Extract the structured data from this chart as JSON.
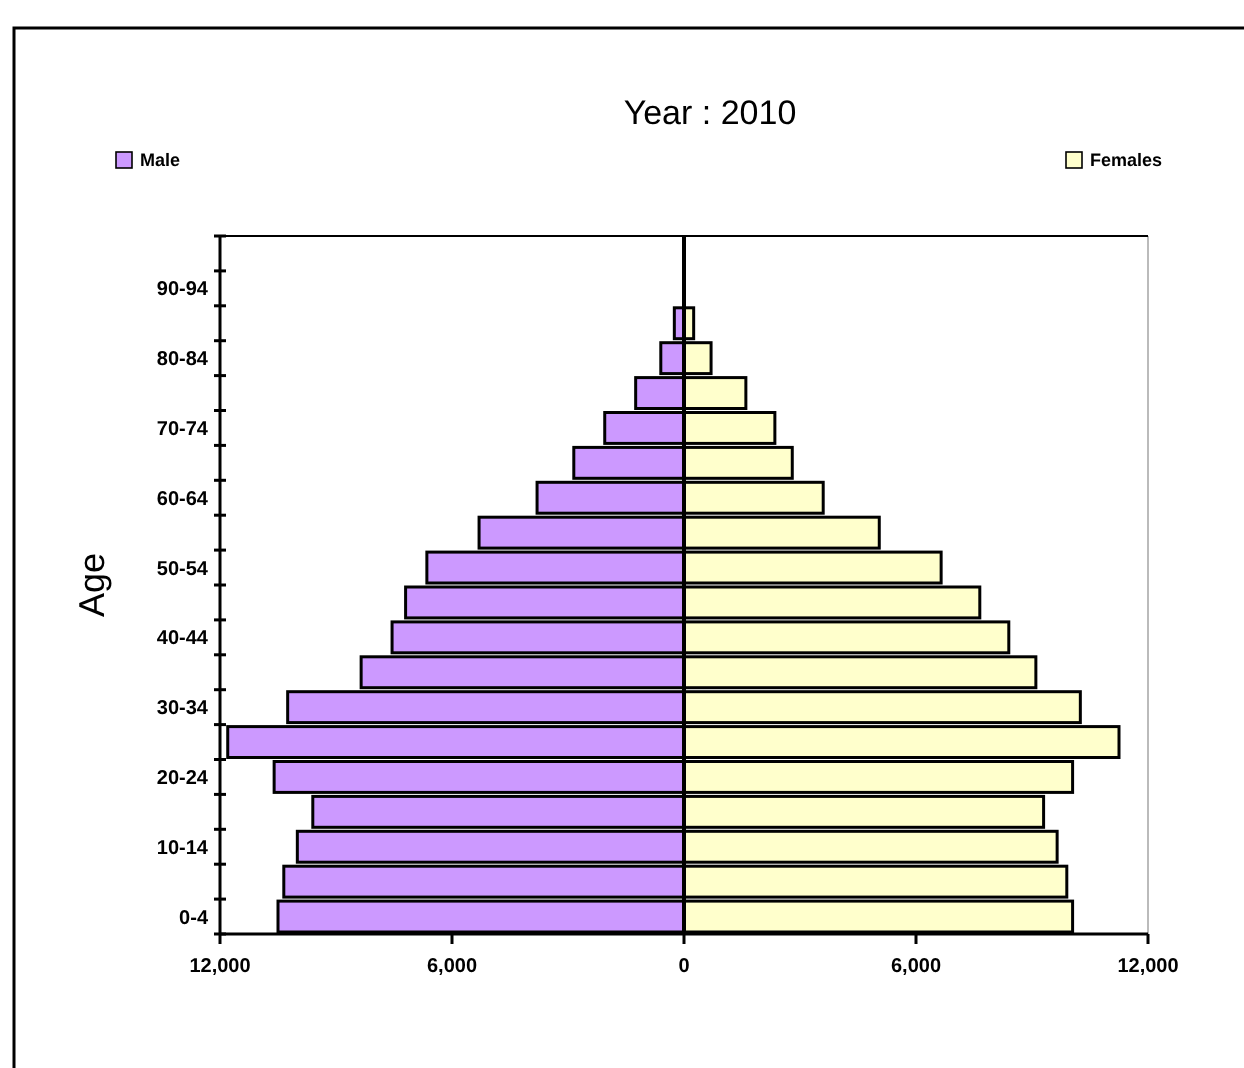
{
  "chart_data": {
    "type": "bar",
    "orientation": "horizontal",
    "title": "Year : 2010",
    "ylabel": "Age",
    "legend": "top",
    "stacked": true,
    "categories": [
      null,
      "90-94",
      null,
      "80-84",
      null,
      "70-74",
      null,
      "60-64",
      null,
      "50-54",
      null,
      "40-44",
      null,
      "30-34",
      null,
      "20-24",
      null,
      "10-14",
      null,
      "0-4"
    ],
    "series": [
      {
        "name": "Male",
        "color": "#cc99ff",
        "values": [
          null,
          null,
          -250,
          -600,
          -1250,
          -2050,
          -2850,
          -3800,
          -5300,
          -6650,
          -7200,
          -7550,
          -8350,
          -10250,
          -11800,
          -10600,
          -9600,
          -10000,
          -10350,
          -10500
        ]
      },
      {
        "name": "Females",
        "color": "#ffffcc",
        "values": [
          null,
          null,
          250,
          700,
          1600,
          2350,
          2800,
          3600,
          5050,
          6650,
          7650,
          8400,
          9100,
          10250,
          11250,
          10050,
          9300,
          9650,
          9900,
          10050
        ]
      }
    ],
    "xlim": [
      -12000,
      12000
    ],
    "xticks": [
      {
        "value": -12000,
        "label": "12,000"
      },
      {
        "value": -6000,
        "label": "6,000"
      },
      0,
      {
        "value": 6000,
        "label": "6,000"
      },
      {
        "value": 12000,
        "label": "12,000"
      }
    ]
  }
}
